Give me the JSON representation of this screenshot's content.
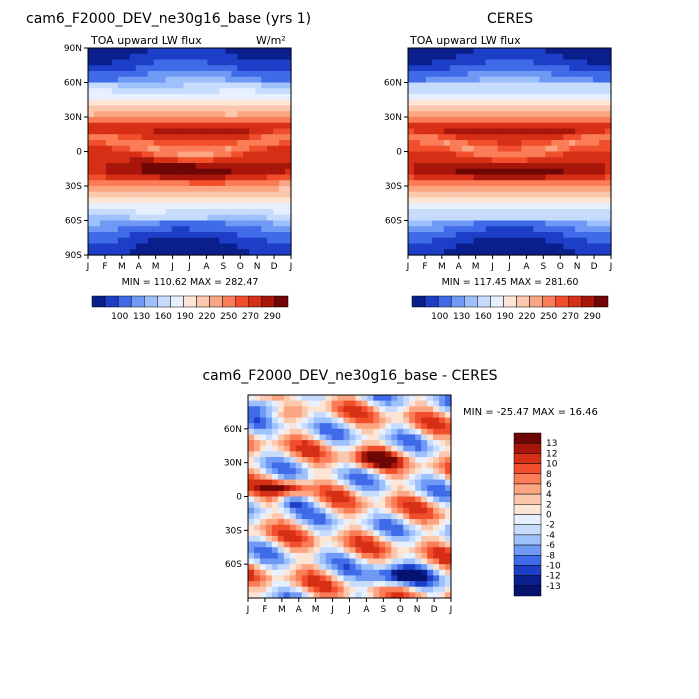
{
  "chart_data": [
    {
      "type": "heatmap",
      "title": "cam6_F2000_DEV_ne30g16_base (yrs 1)",
      "subtitle": "TOA upward LW flux",
      "units": "W/m²",
      "x_ticks": [
        "J",
        "F",
        "M",
        "A",
        "M",
        "J",
        "J",
        "A",
        "S",
        "O",
        "N",
        "D",
        "J"
      ],
      "y_ticks": [
        "90N",
        "60N",
        "30N",
        "0",
        "30S",
        "60S",
        "90S"
      ],
      "stats": "MIN = 110.62  MAX = 282.47",
      "min": 110.62,
      "max": 282.47,
      "colorbar_labels": [
        "100",
        "130",
        "160",
        "190",
        "220",
        "250",
        "270",
        "290"
      ],
      "colorbar_colors": [
        "#0b1f8c",
        "#1d3fc8",
        "#3f6ae8",
        "#6f99f5",
        "#9fc1fb",
        "#c7dcfd",
        "#e6f0fe",
        "#fde5d6",
        "#fcc8ad",
        "#fca582",
        "#fb7d57",
        "#f14f2c",
        "#d62f16",
        "#a8150b",
        "#6e0606"
      ]
    },
    {
      "type": "heatmap",
      "title": "CERES",
      "subtitle": "TOA upward LW flux",
      "x_ticks": [
        "J",
        "F",
        "M",
        "A",
        "M",
        "J",
        "J",
        "A",
        "S",
        "O",
        "N",
        "D",
        "J"
      ],
      "y_ticks": [
        "60N",
        "30N",
        "0",
        "30S",
        "60S"
      ],
      "stats": "MIN = 117.45  MAX = 281.60",
      "min": 117.45,
      "max": 281.6,
      "colorbar_labels": [
        "100",
        "130",
        "160",
        "190",
        "220",
        "250",
        "270",
        "290"
      ]
    },
    {
      "type": "heatmap",
      "title": "cam6_F2000_DEV_ne30g16_base - CERES",
      "x_ticks": [
        "J",
        "F",
        "M",
        "A",
        "M",
        "J",
        "J",
        "A",
        "S",
        "O",
        "N",
        "D",
        "J"
      ],
      "y_ticks": [
        "60N",
        "30N",
        "0",
        "30S",
        "60S"
      ],
      "stats": "MIN = -25.47 MAX =  16.46",
      "min": -25.47,
      "max": 16.46,
      "colorbar_labels": [
        "13",
        "12",
        "10",
        "8",
        "6",
        "4",
        "2",
        "0",
        "-2",
        "-4",
        "-6",
        "-8",
        "-10",
        "-12",
        "-13"
      ],
      "colorbar_colors": [
        "#6e0606",
        "#a8150b",
        "#d62f16",
        "#f14f2c",
        "#fb7d57",
        "#fca582",
        "#fcc8ad",
        "#fde5d6",
        "#e6f0fe",
        "#c7dcfd",
        "#9fc1fb",
        "#6f99f5",
        "#3f6ae8",
        "#1d3fc8",
        "#0b1f8c",
        "#061270"
      ]
    }
  ]
}
